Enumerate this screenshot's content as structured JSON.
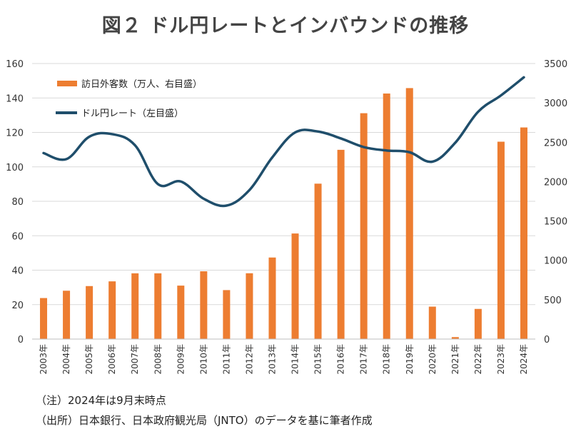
{
  "title": "図２ ドル円レートとインバウンドの推移",
  "notes": {
    "note1": "（注）2024年は9月末時点",
    "note2": "（出所）日本銀行、日本政府観光局（JNTO）のデータを基に筆者作成"
  },
  "colors": {
    "bar": "#ED7D31",
    "line": "#1F4E6B",
    "grid": "#D9D9D9",
    "axis_text": "#333333"
  },
  "chart_data": {
    "type": "bar",
    "categories": [
      "2003年",
      "2004年",
      "2005年",
      "2006年",
      "2007年",
      "2008年",
      "2009年",
      "2010年",
      "2011年",
      "2012年",
      "2013年",
      "2014年",
      "2015年",
      "2016年",
      "2017年",
      "2018年",
      "2019年",
      "2020年",
      "2021年",
      "2022年",
      "2023年",
      "2024年"
    ],
    "series": [
      {
        "name": "訪日外客数（万人、右目盛）",
        "type": "bar",
        "axis": "right",
        "color": "#ED7D31",
        "values": [
          521,
          614,
          673,
          733,
          835,
          835,
          679,
          861,
          622,
          836,
          1036,
          1341,
          1974,
          2404,
          2869,
          3119,
          3188,
          412,
          25,
          383,
          2507,
          2688
        ]
      },
      {
        "name": "ドル円レート（左目盛）",
        "type": "line",
        "axis": "left",
        "color": "#1F4E6B",
        "values": [
          108,
          104.5,
          117.5,
          119,
          112.5,
          90,
          91.5,
          81.5,
          77.5,
          86.5,
          105.5,
          120,
          120.5,
          116.5,
          111.5,
          109.5,
          108.5,
          103,
          114,
          132,
          141.5,
          152
        ]
      }
    ],
    "y_left": {
      "min": 0,
      "max": 160,
      "ticks": [
        0,
        20,
        40,
        60,
        80,
        100,
        120,
        140,
        160
      ]
    },
    "y_right": {
      "min": 0,
      "max": 3500,
      "ticks": [
        0,
        500,
        1000,
        1500,
        2000,
        2500,
        3000,
        3500
      ]
    },
    "grid": true,
    "legend_placement": "top-left"
  }
}
